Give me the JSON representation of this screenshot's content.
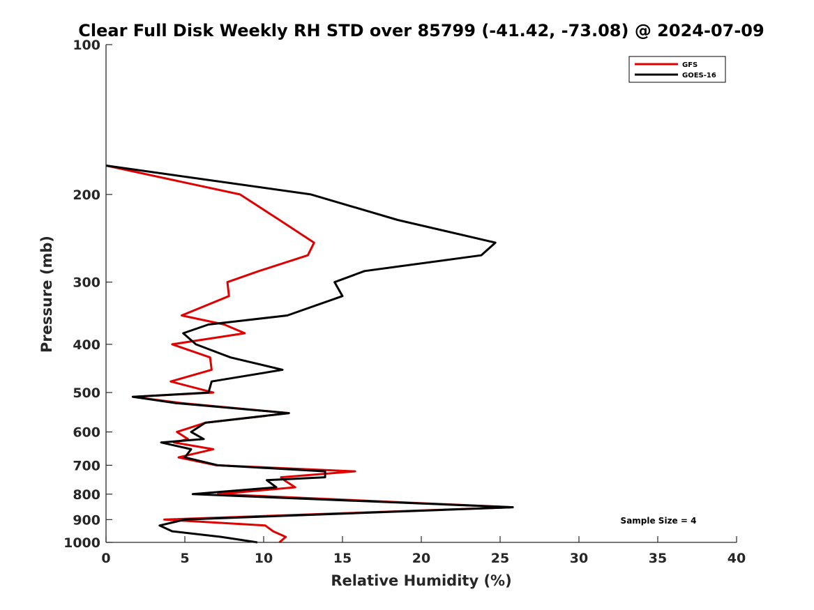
{
  "chart_data": {
    "type": "line",
    "title": "Clear Full Disk Weekly RH STD over 85799 (-41.42, -73.08) @ 2024-07-09",
    "xlabel": "Relative Humidity (%)",
    "ylabel": "Pressure (mb)",
    "xlim": [
      0,
      40
    ],
    "ylim": [
      1000,
      100
    ],
    "yscale": "log",
    "x_ticks": [
      "0",
      "5",
      "10",
      "15",
      "20",
      "25",
      "30",
      "35",
      "40"
    ],
    "y_ticks": [
      "100",
      "200",
      "300",
      "400",
      "500",
      "600",
      "700",
      "800",
      "900",
      "1000"
    ],
    "legend_position": "top-right",
    "annotation": "Sample Size = 4",
    "series": [
      {
        "name": "GFS",
        "color": "#e00000",
        "points": [
          [
            0,
            175
          ],
          [
            8.5,
            200
          ],
          [
            11,
            225
          ],
          [
            13.2,
            250
          ],
          [
            12.8,
            265
          ],
          [
            9.7,
            285
          ],
          [
            7.7,
            300
          ],
          [
            7.8,
            320
          ],
          [
            4.8,
            350
          ],
          [
            7.5,
            365
          ],
          [
            8.8,
            380
          ],
          [
            4.2,
            400
          ],
          [
            6.6,
            425
          ],
          [
            6.7,
            450
          ],
          [
            4.1,
            475
          ],
          [
            6.8,
            500
          ],
          [
            1.7,
            510
          ],
          [
            4.8,
            525
          ],
          [
            11.6,
            550
          ],
          [
            6.3,
            575
          ],
          [
            4.5,
            600
          ],
          [
            5.2,
            620
          ],
          [
            4.3,
            630
          ],
          [
            6.8,
            650
          ],
          [
            4.6,
            675
          ],
          [
            7.0,
            700
          ],
          [
            15.8,
            720
          ],
          [
            11.1,
            740
          ],
          [
            11.3,
            750
          ],
          [
            12.0,
            775
          ],
          [
            7.1,
            800
          ],
          [
            25.8,
            850
          ],
          [
            3.7,
            900
          ],
          [
            10.1,
            925
          ],
          [
            10.6,
            950
          ],
          [
            11.4,
            975
          ],
          [
            11.0,
            1000
          ]
        ]
      },
      {
        "name": "GOES-16",
        "color": "#000000",
        "points": [
          [
            0,
            175
          ],
          [
            13.0,
            200
          ],
          [
            18.5,
            225
          ],
          [
            24.7,
            250
          ],
          [
            23.8,
            265
          ],
          [
            16.4,
            285
          ],
          [
            14.5,
            300
          ],
          [
            15.0,
            320
          ],
          [
            11.5,
            350
          ],
          [
            6.5,
            365
          ],
          [
            4.9,
            380
          ],
          [
            5.7,
            400
          ],
          [
            7.9,
            425
          ],
          [
            11.2,
            450
          ],
          [
            6.7,
            475
          ],
          [
            6.5,
            500
          ],
          [
            1.7,
            510
          ],
          [
            4.4,
            525
          ],
          [
            11.6,
            550
          ],
          [
            6.3,
            575
          ],
          [
            5.4,
            600
          ],
          [
            6.2,
            620
          ],
          [
            3.5,
            630
          ],
          [
            5.4,
            650
          ],
          [
            5.0,
            675
          ],
          [
            7.1,
            700
          ],
          [
            13.9,
            720
          ],
          [
            13.9,
            740
          ],
          [
            10.2,
            750
          ],
          [
            10.8,
            775
          ],
          [
            5.5,
            800
          ],
          [
            25.8,
            850
          ],
          [
            5.0,
            900
          ],
          [
            3.4,
            925
          ],
          [
            4.2,
            950
          ],
          [
            7.3,
            975
          ],
          [
            9.6,
            1000
          ]
        ]
      }
    ]
  }
}
